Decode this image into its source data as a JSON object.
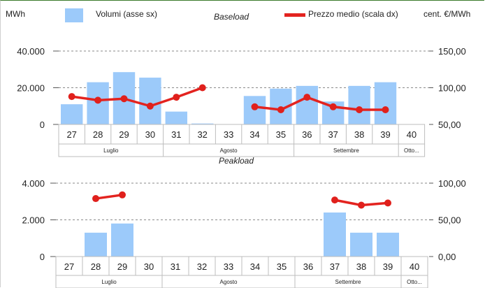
{
  "legend": {
    "left_unit": "MWh",
    "bar_label": "Volumi (asse sx)",
    "line_label": "Prezzo medio (scala dx)",
    "right_unit": "cent. €/MWh"
  },
  "colors": {
    "bar": "#9ccafa",
    "line": "#e3231f",
    "dot": "#e0201c",
    "grid": "#8a8a8a"
  },
  "chart_data": [
    {
      "type": "bar",
      "title": "Baseload",
      "categories": [
        "27",
        "28",
        "29",
        "30",
        "31",
        "32",
        "33",
        "34",
        "35",
        "36",
        "37",
        "38",
        "39",
        "40"
      ],
      "months": [
        {
          "label": "Luglio",
          "weeks": [
            "27",
            "28",
            "29",
            "30"
          ]
        },
        {
          "label": "Agosto",
          "weeks": [
            "31",
            "32",
            "33",
            "34",
            "35"
          ]
        },
        {
          "label": "Settembre",
          "weeks": [
            "36",
            "37",
            "38",
            "39"
          ]
        },
        {
          "label": "Otto...",
          "weeks": [
            "40"
          ]
        }
      ],
      "series": [
        {
          "name": "Volumi (asse sx)",
          "axis": "left",
          "type": "bar",
          "values": [
            11000,
            23000,
            28500,
            25500,
            7000,
            500,
            0,
            15500,
            19500,
            21000,
            12500,
            21000,
            23000,
            0
          ]
        },
        {
          "name": "Prezzo medio (scala dx)",
          "axis": "right",
          "type": "line",
          "values": [
            88,
            83,
            85,
            75,
            87,
            100,
            null,
            74,
            70,
            87,
            74,
            70,
            70,
            null
          ]
        }
      ],
      "ylim_left": [
        0,
        40000
      ],
      "yticks_left": [
        "0",
        "20.000",
        "40.000"
      ],
      "ylim_right": [
        50,
        150
      ],
      "yticks_right": [
        "50,00",
        "100,00",
        "150,00"
      ],
      "grid": "dashed horizontal"
    },
    {
      "type": "bar",
      "title": "Peakload",
      "categories": [
        "27",
        "28",
        "29",
        "30",
        "31",
        "32",
        "33",
        "34",
        "35",
        "36",
        "37",
        "38",
        "39",
        "40"
      ],
      "months": [
        {
          "label": "Luglio",
          "weeks": [
            "27",
            "28",
            "29",
            "30"
          ]
        },
        {
          "label": "Agosto",
          "weeks": [
            "31",
            "32",
            "33",
            "34",
            "35"
          ]
        },
        {
          "label": "Settembre",
          "weeks": [
            "36",
            "37",
            "38",
            "39"
          ]
        },
        {
          "label": "Otto...",
          "weeks": [
            "40"
          ]
        }
      ],
      "series": [
        {
          "name": "Volumi (asse sx)",
          "axis": "left",
          "type": "bar",
          "values": [
            0,
            1300,
            1800,
            0,
            0,
            0,
            0,
            0,
            0,
            0,
            2400,
            1300,
            1300,
            0
          ]
        },
        {
          "name": "Prezzo medio (scala dx)",
          "axis": "right",
          "type": "line",
          "values": [
            null,
            79,
            84,
            null,
            null,
            null,
            null,
            null,
            null,
            null,
            77,
            70,
            73,
            null
          ]
        }
      ],
      "ylim_left": [
        0,
        4000
      ],
      "yticks_left": [
        "0",
        "2.000",
        "4.000"
      ],
      "ylim_right": [
        0,
        100
      ],
      "yticks_right": [
        "0,00",
        "50,00",
        "100,00"
      ],
      "grid": "dashed horizontal"
    }
  ]
}
